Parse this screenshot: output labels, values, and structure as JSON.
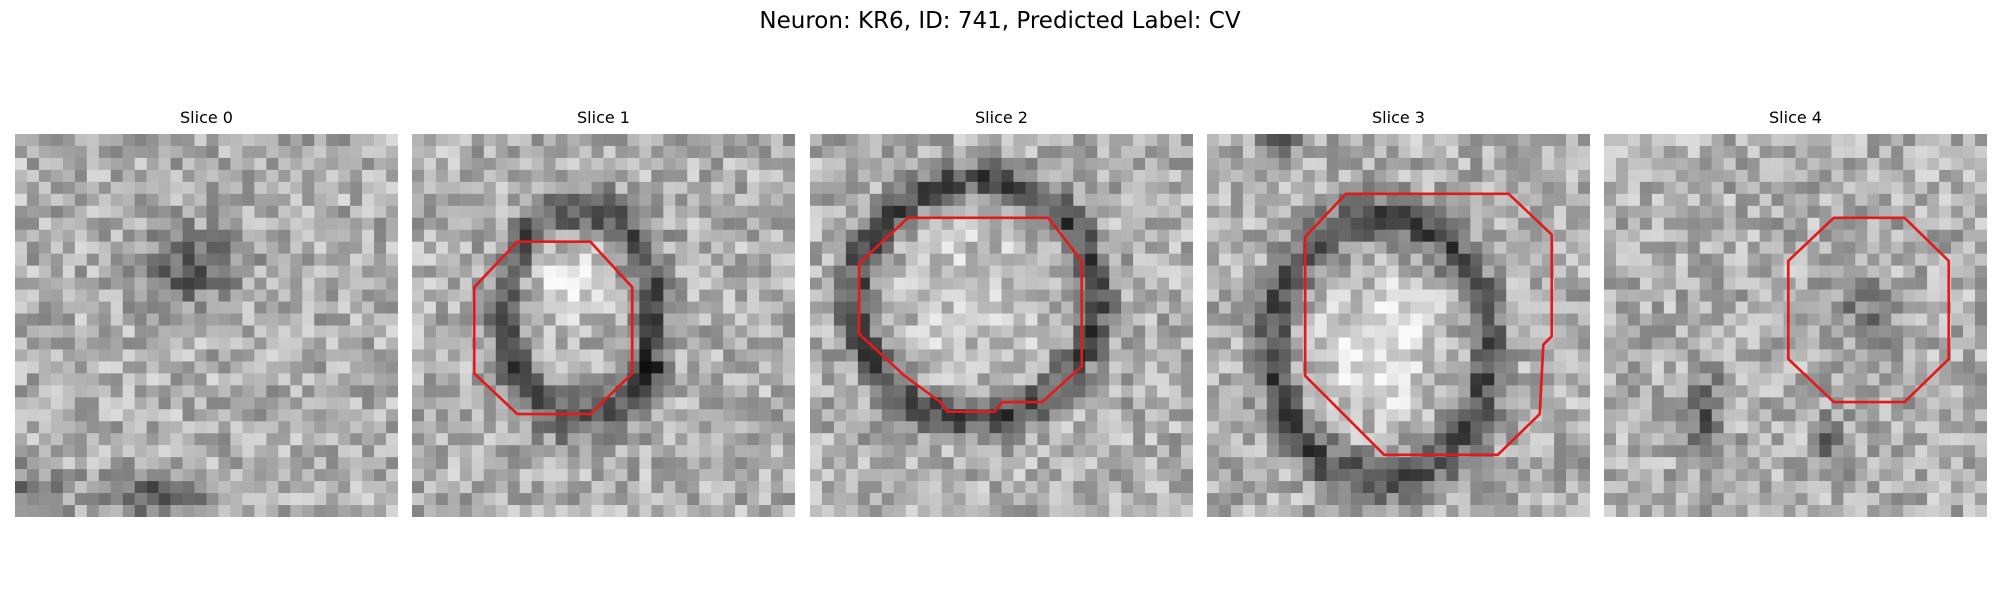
{
  "figure": {
    "title": "Neuron: KR6, ID: 741, Predicted Label: CV",
    "contour_color": "#e31a1c"
  },
  "slices": [
    {
      "title": "Slice 0",
      "has_contour": false
    },
    {
      "title": "Slice 1",
      "has_contour": true
    },
    {
      "title": "Slice 2",
      "has_contour": true
    },
    {
      "title": "Slice 3",
      "has_contour": true
    },
    {
      "title": "Slice 4",
      "has_contour": true
    }
  ]
}
